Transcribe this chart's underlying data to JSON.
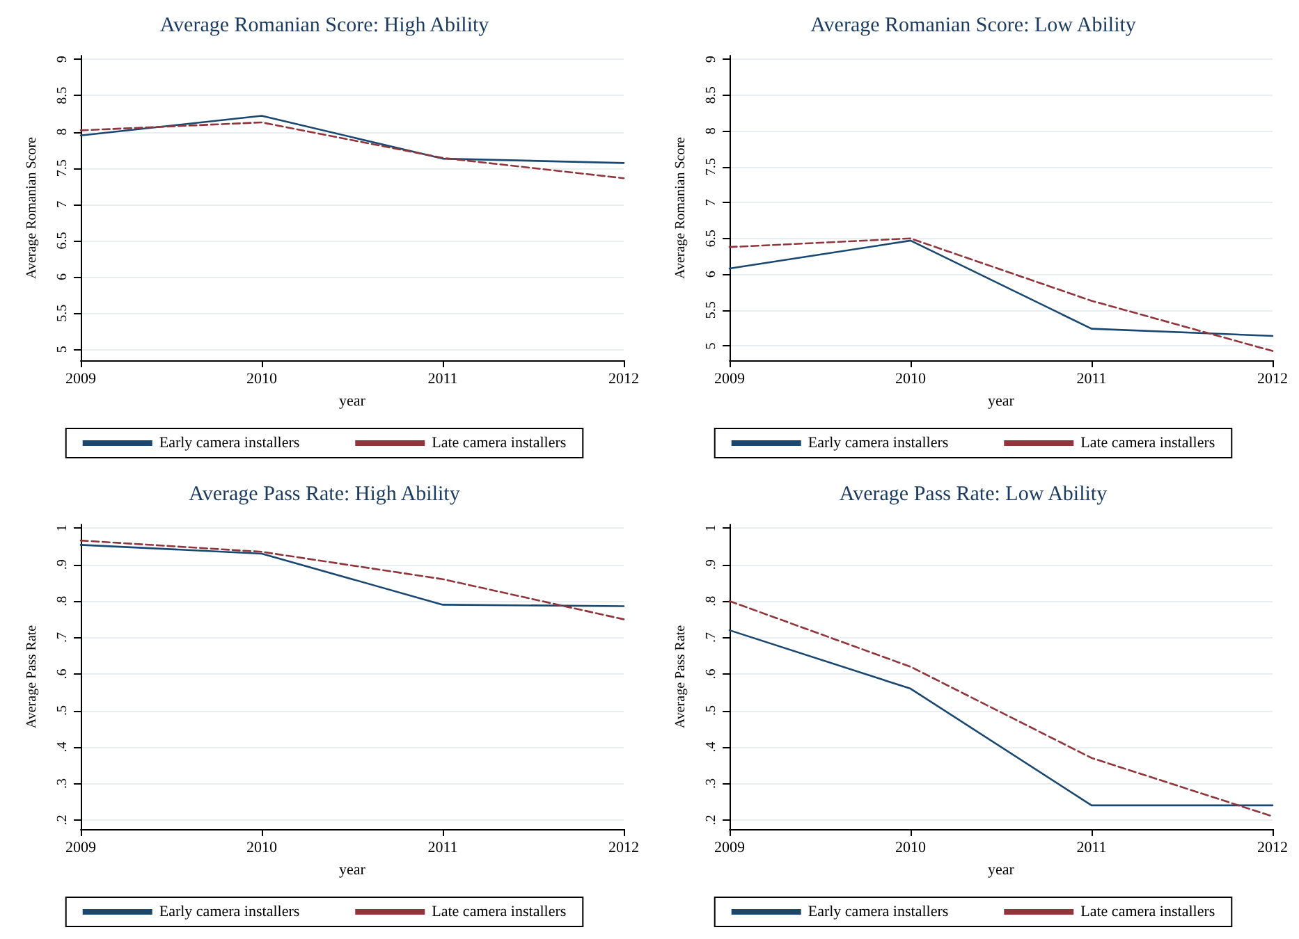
{
  "chart_data": [
    {
      "type": "line",
      "title": "Average Romanian Score: High Ability",
      "xlabel": "year",
      "ylabel": "Average Romanian Score",
      "x": [
        2009,
        2010,
        2011,
        2012
      ],
      "xlim": [
        2009,
        2012
      ],
      "xticks": [
        2009,
        2010,
        2011,
        2012
      ],
      "ylim": [
        4.85,
        9.05
      ],
      "yticks": [
        5,
        5.5,
        6,
        6.5,
        7,
        7.5,
        8,
        8.5,
        9
      ],
      "grid": "y",
      "legend": "bottom",
      "marker": "none",
      "series": [
        {
          "name": "Early camera installers",
          "color": "#1a476f",
          "line_style": "solid",
          "values": [
            7.95,
            8.22,
            7.63,
            7.57
          ]
        },
        {
          "name": "Late camera installers",
          "color": "#90353b",
          "line_style": "dashed",
          "values": [
            8.02,
            8.13,
            7.64,
            7.36
          ]
        }
      ]
    },
    {
      "type": "line",
      "title": "Average Romanian Score: Low Ability",
      "xlabel": "year",
      "ylabel": "Average Romanian Score",
      "x": [
        2009,
        2010,
        2011,
        2012
      ],
      "xlim": [
        2009,
        2012
      ],
      "xticks": [
        2009,
        2010,
        2011,
        2012
      ],
      "ylim": [
        4.8,
        9.05
      ],
      "yticks": [
        5,
        5.5,
        6,
        6.5,
        7,
        7.5,
        8,
        8.5,
        9
      ],
      "grid": "y",
      "legend": "bottom",
      "marker": "none",
      "series": [
        {
          "name": "Early camera installers",
          "color": "#1a476f",
          "line_style": "solid",
          "values": [
            6.08,
            6.47,
            5.24,
            5.14
          ]
        },
        {
          "name": "Late camera installers",
          "color": "#90353b",
          "line_style": "dashed",
          "values": [
            6.38,
            6.5,
            5.63,
            4.93
          ]
        }
      ]
    },
    {
      "type": "line",
      "title": "Average Pass Rate: High Ability",
      "xlabel": "year",
      "ylabel": "Average Pass Rate",
      "x": [
        2009,
        2010,
        2011,
        2012
      ],
      "xlim": [
        2009,
        2012
      ],
      "xticks": [
        2009,
        2010,
        2011,
        2012
      ],
      "ylim": [
        0.175,
        1.01
      ],
      "yticks": [
        {
          "value": 0.2,
          "label": ".2"
        },
        {
          "value": 0.3,
          "label": ".3"
        },
        {
          "value": 0.4,
          "label": ".4"
        },
        {
          "value": 0.5,
          "label": ".5"
        },
        {
          "value": 0.6,
          "label": ".6"
        },
        {
          "value": 0.7,
          "label": ".7"
        },
        {
          "value": 0.8,
          "label": ".8"
        },
        {
          "value": 0.9,
          "label": ".9"
        },
        1
      ],
      "grid": "y",
      "legend": "bottom",
      "marker": "none",
      "series": [
        {
          "name": "Early camera installers",
          "color": "#1a476f",
          "line_style": "solid",
          "values": [
            0.954,
            0.93,
            0.79,
            0.786
          ]
        },
        {
          "name": "Late camera installers",
          "color": "#90353b",
          "line_style": "dashed",
          "values": [
            0.966,
            0.935,
            0.86,
            0.75
          ]
        }
      ]
    },
    {
      "type": "line",
      "title": "Average Pass Rate: Low Ability",
      "xlabel": "year",
      "ylabel": "Average Pass Rate",
      "x": [
        2009,
        2010,
        2011,
        2012
      ],
      "xlim": [
        2009,
        2012
      ],
      "xticks": [
        2009,
        2010,
        2011,
        2012
      ],
      "ylim": [
        0.175,
        1.01
      ],
      "yticks": [
        {
          "value": 0.2,
          "label": ".2"
        },
        {
          "value": 0.3,
          "label": ".3"
        },
        {
          "value": 0.4,
          "label": ".4"
        },
        {
          "value": 0.5,
          "label": ".5"
        },
        {
          "value": 0.6,
          "label": ".6"
        },
        {
          "value": 0.7,
          "label": ".7"
        },
        {
          "value": 0.8,
          "label": ".8"
        },
        {
          "value": 0.9,
          "label": ".9"
        },
        1
      ],
      "grid": "y",
      "legend": "bottom",
      "marker": "none",
      "series": [
        {
          "name": "Early camera installers",
          "color": "#1a476f",
          "line_style": "solid",
          "values": [
            0.72,
            0.56,
            0.24,
            0.24
          ]
        },
        {
          "name": "Late camera installers",
          "color": "#90353b",
          "line_style": "dashed",
          "values": [
            0.8,
            0.62,
            0.37,
            0.21
          ]
        }
      ]
    }
  ]
}
